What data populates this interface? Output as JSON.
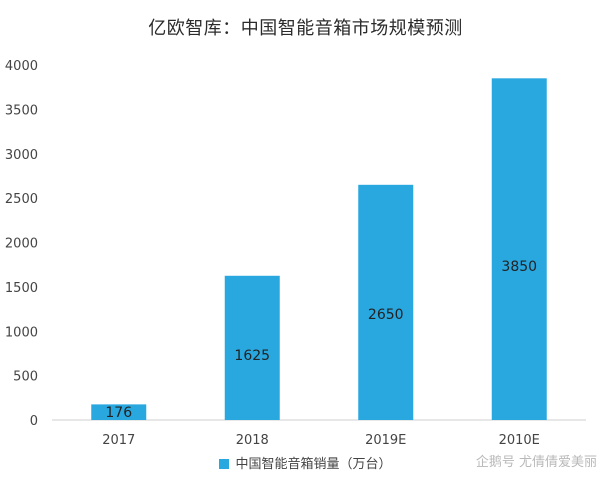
{
  "chart_data": {
    "type": "bar",
    "title": "亿欧智库：中国智能音箱市场规模预测",
    "categories": [
      "2017",
      "2018",
      "2019E",
      "2010E"
    ],
    "series": [
      {
        "name": "中国智能音箱销量（万台）",
        "values": [
          176,
          1625,
          2650,
          3850
        ],
        "color": "#29a8e0"
      }
    ],
    "data_labels": [
      "176",
      "1625",
      "2650",
      "3850"
    ],
    "y_ticks": [
      "0",
      "500",
      "1000",
      "1500",
      "2000",
      "2500",
      "3000",
      "3500",
      "4000"
    ],
    "ylim": [
      0,
      4000
    ],
    "xlabel": "",
    "ylabel": "",
    "grid": false,
    "legend_position": "bottom"
  },
  "watermark": "企鹅号 尤倩倩爱美丽"
}
